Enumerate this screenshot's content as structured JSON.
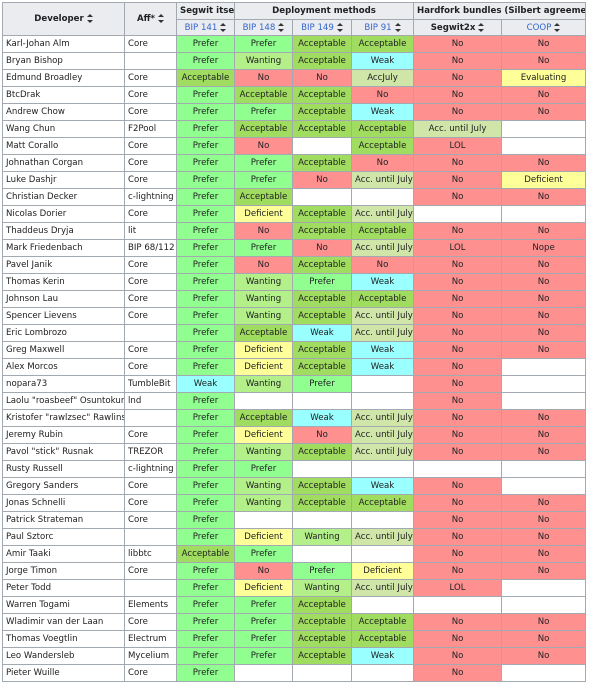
{
  "headers": {
    "developer": "Developer",
    "aff": "Aff*",
    "segwit_itself": "Segwit itself",
    "deployment_methods": "Deployment methods",
    "hardfork_bundles": "Hardfork bundles (Silbert agreement)",
    "bip141": "BIP 141",
    "bip148": "BIP 148",
    "bip149": "BIP 149",
    "bip91": "BIP 91",
    "segwit2x": "Segwit2x",
    "coop": "COOP"
  },
  "rows": [
    {
      "dev": "Karl-Johan Alm",
      "aff": "Core",
      "cells": [
        "Prefer",
        "Prefer",
        "Acceptable",
        "Acceptable",
        "No",
        "No"
      ]
    },
    {
      "dev": "Bryan Bishop",
      "aff": "",
      "cells": [
        "Prefer",
        "Wanting",
        "Acceptable",
        "Weak",
        "No",
        "No"
      ]
    },
    {
      "dev": "Edmund Broadley",
      "aff": "Core",
      "cells": [
        "Acceptable",
        "No",
        "No",
        "AccJuly",
        "No",
        "Evaluating"
      ]
    },
    {
      "dev": "BtcDrak",
      "aff": "Core",
      "cells": [
        "Prefer",
        "Acceptable",
        "Acceptable",
        "No",
        "No",
        "No"
      ]
    },
    {
      "dev": "Andrew Chow",
      "aff": "Core",
      "cells": [
        "Prefer",
        "Prefer",
        "Acceptable",
        "Weak",
        "No",
        "No"
      ]
    },
    {
      "dev": "Wang Chun",
      "aff": "F2Pool",
      "cells": [
        "Prefer",
        "Acceptable",
        "Acceptable",
        "Acceptable",
        "Acc. until July",
        ""
      ]
    },
    {
      "dev": "Matt Corallo",
      "aff": "Core",
      "cells": [
        "Prefer",
        "No",
        "",
        "Acceptable",
        "LOL",
        ""
      ]
    },
    {
      "dev": "Johnathan Corgan",
      "aff": "Core",
      "cells": [
        "Prefer",
        "Prefer",
        "Acceptable",
        "No",
        "No",
        "No"
      ]
    },
    {
      "dev": "Luke Dashjr",
      "aff": "Core",
      "cells": [
        "Prefer",
        "Prefer",
        "No",
        "Acc. until July",
        "No",
        "Deficient"
      ]
    },
    {
      "dev": "Christian Decker",
      "aff": "c-lightning",
      "cells": [
        "Prefer",
        "Acceptable",
        "",
        "",
        "No",
        "No"
      ]
    },
    {
      "dev": "Nicolas Dorier",
      "aff": "Core",
      "cells": [
        "Prefer",
        "Deficient",
        "Acceptable",
        "Acc. until July",
        "",
        ""
      ]
    },
    {
      "dev": "Thaddeus Dryja",
      "aff": "lit",
      "cells": [
        "Prefer",
        "No",
        "Acceptable",
        "Acceptable",
        "No",
        "No"
      ]
    },
    {
      "dev": "Mark Friedenbach",
      "aff": "BIP 68/112",
      "cells": [
        "Prefer",
        "Prefer",
        "No",
        "Acc. until July",
        "LOL",
        "Nope"
      ]
    },
    {
      "dev": "Pavel Janik",
      "aff": "Core",
      "cells": [
        "Prefer",
        "No",
        "Acceptable",
        "No",
        "No",
        "No"
      ]
    },
    {
      "dev": "Thomas Kerin",
      "aff": "Core",
      "cells": [
        "Prefer",
        "Wanting",
        "Prefer",
        "Weak",
        "No",
        "No"
      ]
    },
    {
      "dev": "Johnson Lau",
      "aff": "Core",
      "cells": [
        "Prefer",
        "Wanting",
        "Acceptable",
        "Acceptable",
        "No",
        "No"
      ]
    },
    {
      "dev": "Spencer Lievens",
      "aff": "Core",
      "cells": [
        "Prefer",
        "Wanting",
        "Acceptable",
        "Acc. until July",
        "No",
        "No"
      ]
    },
    {
      "dev": "Eric Lombrozo",
      "aff": "",
      "cells": [
        "Prefer",
        "Acceptable",
        "Weak",
        "Acc. until July",
        "No",
        "No"
      ]
    },
    {
      "dev": "Greg Maxwell",
      "aff": "Core",
      "cells": [
        "Prefer",
        "Deficient",
        "Acceptable",
        "Weak",
        "No",
        "No"
      ]
    },
    {
      "dev": "Alex Morcos",
      "aff": "Core",
      "cells": [
        "Prefer",
        "Deficient",
        "Acceptable",
        "Weak",
        "No",
        ""
      ]
    },
    {
      "dev": "nopara73",
      "aff": "TumbleBit",
      "cells": [
        "Weak",
        "Wanting",
        "Prefer",
        "",
        "No",
        ""
      ]
    },
    {
      "dev": "Laolu \"roasbeef\" Osuntokun",
      "aff": "lnd",
      "cells": [
        "Prefer",
        "",
        "",
        "",
        "No",
        ""
      ]
    },
    {
      "dev": "Kristofer \"rawlzsec\" Rawlins",
      "aff": "",
      "cells": [
        "Prefer",
        "Acceptable",
        "Weak",
        "Acc. until July",
        "No",
        "No"
      ]
    },
    {
      "dev": "Jeremy Rubin",
      "aff": "Core",
      "cells": [
        "Prefer",
        "Deficient",
        "No",
        "Acc. until July",
        "No",
        "No"
      ]
    },
    {
      "dev": "Pavol \"stick\" Rusnak",
      "aff": "TREZOR",
      "cells": [
        "Prefer",
        "Wanting",
        "Acceptable",
        "Acc. until July",
        "No",
        "No"
      ]
    },
    {
      "dev": "Rusty Russell",
      "aff": "c-lightning",
      "cells": [
        "Prefer",
        "Prefer",
        "",
        "",
        "",
        ""
      ]
    },
    {
      "dev": "Gregory Sanders",
      "aff": "Core",
      "cells": [
        "Prefer",
        "Wanting",
        "Acceptable",
        "Weak",
        "No",
        ""
      ]
    },
    {
      "dev": "Jonas Schnelli",
      "aff": "Core",
      "cells": [
        "Prefer",
        "Wanting",
        "Acceptable",
        "Acceptable",
        "No",
        "No"
      ]
    },
    {
      "dev": "Patrick Strateman",
      "aff": "Core",
      "cells": [
        "Prefer",
        "",
        "",
        "",
        "No",
        "No"
      ]
    },
    {
      "dev": "Paul Sztorc",
      "aff": "",
      "cells": [
        "Prefer",
        "Deficient",
        "Wanting",
        "Acc. until July",
        "No",
        "No"
      ]
    },
    {
      "dev": "Amir Taaki",
      "aff": "libbtc",
      "cells": [
        "Acceptable",
        "Prefer",
        "",
        "",
        "No",
        "No"
      ]
    },
    {
      "dev": "Jorge Timon",
      "aff": "Core",
      "cells": [
        "Prefer",
        "No",
        "Prefer",
        "Deficient",
        "No",
        "No"
      ]
    },
    {
      "dev": "Peter Todd",
      "aff": "",
      "cells": [
        "Prefer",
        "Deficient",
        "Wanting",
        "Acc. until July",
        "LOL",
        ""
      ]
    },
    {
      "dev": "Warren Togami",
      "aff": "Elements",
      "cells": [
        "Prefer",
        "Prefer",
        "Acceptable",
        "",
        "",
        ""
      ]
    },
    {
      "dev": "Wladimir van der Laan",
      "aff": "Core",
      "cells": [
        "Prefer",
        "Prefer",
        "Acceptable",
        "Acceptable",
        "No",
        "No"
      ]
    },
    {
      "dev": "Thomas Voegtlin",
      "aff": "Electrum",
      "cells": [
        "Prefer",
        "Prefer",
        "Acceptable",
        "Acceptable",
        "No",
        "No"
      ]
    },
    {
      "dev": "Leo Wandersleb",
      "aff": "Mycelium",
      "cells": [
        "Prefer",
        "Prefer",
        "Acceptable",
        "Weak",
        "No",
        "No"
      ]
    },
    {
      "dev": "Pieter Wuille",
      "aff": "Core",
      "cells": [
        "Prefer",
        "",
        "",
        "",
        "No",
        ""
      ]
    }
  ],
  "link_affiliations": [
    "F2Pool",
    "TREZOR"
  ],
  "colors": {
    "Prefer": "#90ff90",
    "Acceptable": "#9fdc5f",
    "Wanting": "#b3f08a",
    "Weak": "#99ffff",
    "No": "#ff9090",
    "Acc. until July": "#d0e6a8",
    "AccJuly": "#d0e6a8",
    "Deficient": "#ffff99",
    "Evaluating": "#ffff99",
    "LOL": "#ff9090",
    "Nope": "#ff9090",
    "": "#ffffff",
    "link": "#3366cc",
    "header_bg": "#eaecf0",
    "border": "#a2a9b1"
  }
}
